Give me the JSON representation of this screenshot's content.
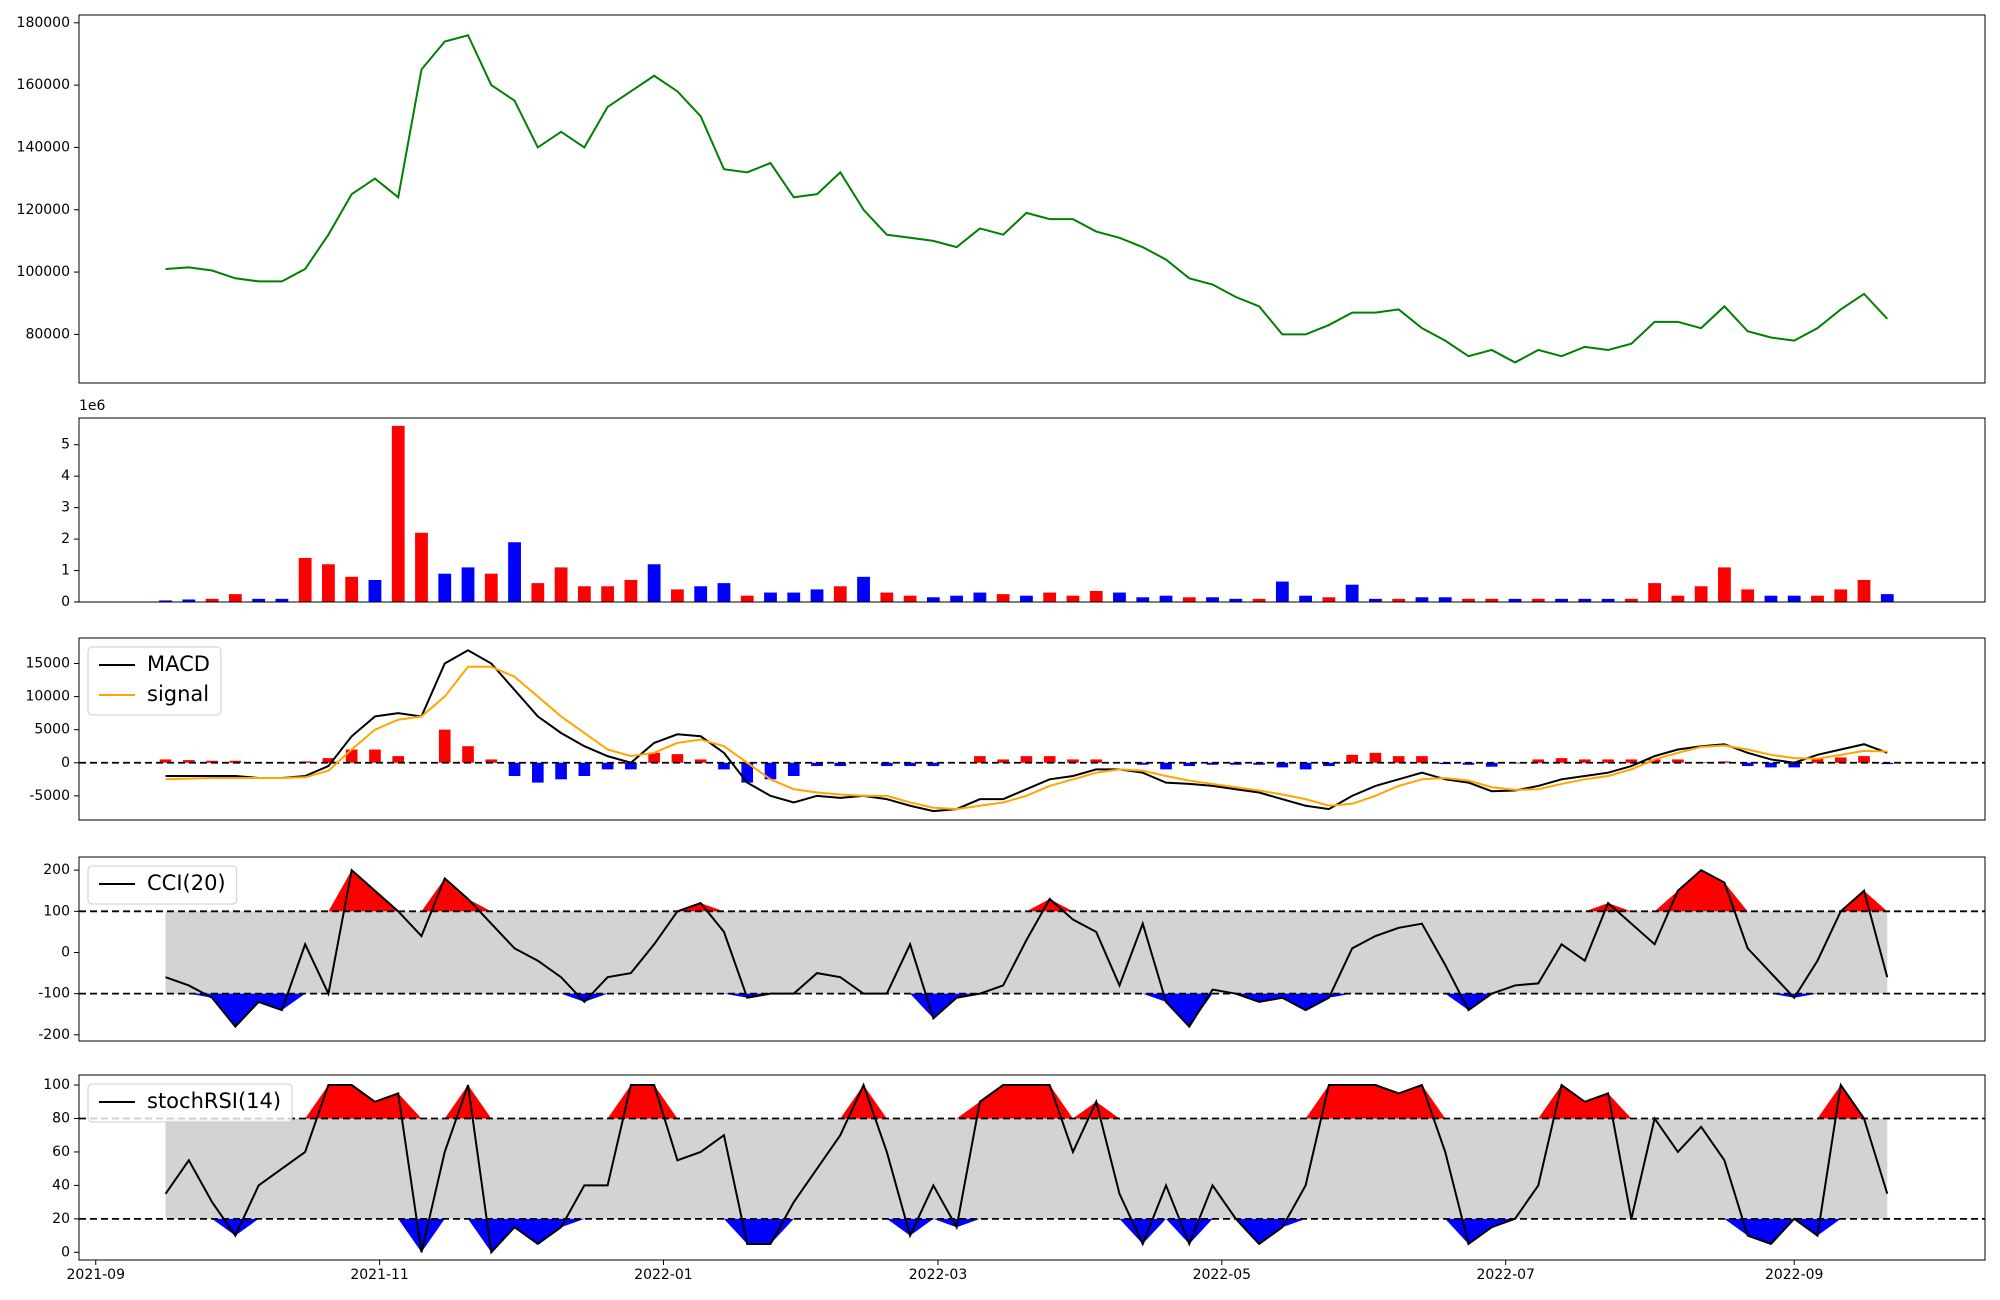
{
  "chart_data": [
    {
      "type": "line",
      "x": [
        15,
        20,
        25,
        30,
        35,
        40,
        45,
        50,
        55,
        60,
        65,
        70,
        75,
        80,
        85,
        90,
        95,
        100,
        105,
        110,
        115,
        120,
        125,
        130,
        135,
        140,
        145,
        150,
        155,
        160,
        165,
        170,
        175,
        180,
        185,
        190,
        195,
        200,
        205,
        210,
        215,
        220,
        225,
        230,
        235,
        240,
        245,
        250,
        255,
        260,
        265,
        270,
        275,
        280,
        285,
        290,
        295,
        300,
        305,
        310,
        315,
        320,
        325,
        330,
        335,
        340,
        345,
        350,
        355,
        360,
        365,
        370,
        375,
        380,
        385
      ],
      "values": [
        101000,
        101500,
        100500,
        98000,
        97000,
        97000,
        101000,
        112000,
        125000,
        130000,
        124000,
        165000,
        174000,
        176000,
        160000,
        155000,
        140000,
        145000,
        140000,
        153000,
        158000,
        163000,
        158000,
        150000,
        133000,
        132000,
        135000,
        124000,
        125000,
        132000,
        120000,
        112000,
        111000,
        110000,
        108000,
        114000,
        112000,
        119000,
        117000,
        117000,
        113000,
        111000,
        108000,
        104000,
        98000,
        96000,
        92000,
        89000,
        80000,
        80000,
        83000,
        87000,
        87000,
        88000,
        82000,
        78000,
        73000,
        75000,
        71000,
        75000,
        73000,
        76000,
        75000,
        77000,
        84000,
        84000,
        82000,
        89000,
        81000,
        79000,
        78000,
        82000,
        88000,
        93000,
        85000
      ],
      "color": "green",
      "xlim": [
        -3.6,
        406
      ],
      "ylim": [
        64400,
        182500
      ],
      "yticks": [
        80000,
        100000,
        120000,
        140000,
        160000,
        180000
      ]
    },
    {
      "type": "bar",
      "x": [
        15,
        20,
        25,
        30,
        35,
        40,
        45,
        50,
        55,
        60,
        65,
        70,
        75,
        80,
        85,
        90,
        95,
        100,
        105,
        110,
        115,
        120,
        125,
        130,
        135,
        140,
        145,
        150,
        155,
        160,
        165,
        170,
        175,
        180,
        185,
        190,
        195,
        200,
        205,
        210,
        215,
        220,
        225,
        230,
        235,
        240,
        245,
        250,
        255,
        260,
        265,
        270,
        275,
        280,
        285,
        290,
        295,
        300,
        305,
        310,
        315,
        320,
        325,
        330,
        335,
        340,
        345,
        350,
        355,
        360,
        365,
        370,
        375,
        380,
        385
      ],
      "values": [
        0.05,
        0.08,
        0.1,
        0.25,
        0.1,
        0.1,
        1.4,
        1.2,
        0.8,
        0.7,
        5.6,
        2.2,
        0.9,
        1.1,
        0.9,
        1.9,
        0.6,
        1.1,
        0.5,
        0.5,
        0.7,
        1.2,
        0.4,
        0.5,
        0.6,
        0.2,
        0.3,
        0.3,
        0.4,
        0.5,
        0.8,
        0.3,
        0.2,
        0.15,
        0.2,
        0.3,
        0.25,
        0.2,
        0.3,
        0.2,
        0.35,
        0.3,
        0.15,
        0.2,
        0.15,
        0.15,
        0.1,
        0.1,
        0.65,
        0.2,
        0.15,
        0.55,
        0.1,
        0.1,
        0.15,
        0.15,
        0.1,
        0.1,
        0.1,
        0.1,
        0.1,
        0.1,
        0.1,
        0.1,
        0.6,
        0.2,
        0.5,
        1.1,
        0.4,
        0.2,
        0.2,
        0.2,
        0.4,
        0.7,
        0.25
      ],
      "colors": [
        "blue",
        "blue",
        "red",
        "red",
        "blue",
        "blue",
        "red",
        "red",
        "red",
        "blue",
        "red",
        "red",
        "blue",
        "blue",
        "red",
        "blue",
        "red",
        "red",
        "red",
        "red",
        "red",
        "blue",
        "red",
        "blue",
        "blue",
        "red",
        "blue",
        "blue",
        "blue",
        "red",
        "blue",
        "red",
        "red",
        "blue",
        "blue",
        "blue",
        "red",
        "blue",
        "red",
        "red",
        "red",
        "blue",
        "blue",
        "blue",
        "red",
        "blue",
        "blue",
        "red",
        "blue",
        "blue",
        "red",
        "blue",
        "blue",
        "red",
        "blue",
        "blue",
        "red",
        "red",
        "blue",
        "red",
        "blue",
        "blue",
        "blue",
        "red",
        "red",
        "red",
        "red",
        "red",
        "red",
        "blue",
        "blue",
        "red",
        "red",
        "red",
        "blue"
      ],
      "offset_label": "1e6",
      "xlim": [
        -3.6,
        406
      ],
      "ylim": [
        0,
        5.85
      ],
      "yticks": [
        0,
        1,
        2,
        3,
        4,
        5
      ]
    },
    {
      "type": "macd",
      "x": [
        15,
        20,
        25,
        30,
        35,
        40,
        45,
        50,
        55,
        60,
        65,
        70,
        75,
        80,
        85,
        90,
        95,
        100,
        105,
        110,
        115,
        120,
        125,
        130,
        135,
        140,
        145,
        150,
        155,
        160,
        165,
        170,
        175,
        180,
        185,
        190,
        195,
        200,
        205,
        210,
        215,
        220,
        225,
        230,
        235,
        240,
        245,
        250,
        255,
        260,
        265,
        270,
        275,
        280,
        285,
        290,
        295,
        300,
        305,
        310,
        315,
        320,
        325,
        330,
        335,
        340,
        345,
        350,
        355,
        360,
        365,
        370,
        375,
        380,
        385
      ],
      "series": [
        {
          "name": "MACD",
          "color": "black",
          "values": [
            -2000,
            -2000,
            -2000,
            -2000,
            -2300,
            -2300,
            -2000,
            -500,
            4000,
            7000,
            7500,
            7000,
            15000,
            17000,
            15000,
            11000,
            7000,
            4500,
            2500,
            1000,
            0,
            3000,
            4300,
            4000,
            1500,
            -3000,
            -5000,
            -6000,
            -5000,
            -5300,
            -5000,
            -5500,
            -6500,
            -7300,
            -7000,
            -5500,
            -5500,
            -4000,
            -2500,
            -2000,
            -1000,
            -1000,
            -1500,
            -3000,
            -3200,
            -3500,
            -4000,
            -4500,
            -5500,
            -6500,
            -7000,
            -5000,
            -3500,
            -2500,
            -1500,
            -2500,
            -3000,
            -4300,
            -4200,
            -3500,
            -2500,
            -2000,
            -1500,
            -500,
            1000,
            2000,
            2500,
            2800,
            1500,
            500,
            0,
            1200,
            2000,
            2800,
            1500
          ]
        },
        {
          "name": "signal",
          "color": "orange",
          "values": [
            -2500,
            -2400,
            -2300,
            -2300,
            -2300,
            -2300,
            -2200,
            -1200,
            2000,
            5000,
            6500,
            7000,
            10000,
            14500,
            14500,
            13000,
            10000,
            7000,
            4500,
            2000,
            1000,
            1500,
            3000,
            3500,
            2500,
            0,
            -2500,
            -4000,
            -4500,
            -4800,
            -5000,
            -5000,
            -6000,
            -6800,
            -7000,
            -6500,
            -6000,
            -5000,
            -3500,
            -2500,
            -1500,
            -1000,
            -1200,
            -2000,
            -2700,
            -3200,
            -3700,
            -4200,
            -4800,
            -5500,
            -6500,
            -6200,
            -5000,
            -3500,
            -2500,
            -2300,
            -2700,
            -3700,
            -4100,
            -4000,
            -3200,
            -2500,
            -2000,
            -1000,
            500,
            1500,
            2400,
            2600,
            2000,
            1200,
            700,
            600,
            1200,
            1800,
            1700
          ]
        }
      ],
      "histogram": {
        "values": [
          500,
          400,
          300,
          300,
          0,
          0,
          200,
          700,
          2000,
          2000,
          1000,
          0,
          5000,
          2500,
          500,
          -2000,
          -3000,
          -2500,
          -2000,
          -1000,
          -1000,
          1500,
          1300,
          500,
          -1000,
          -3000,
          -2500,
          -2000,
          -500,
          -500,
          0,
          -500,
          -500,
          -500,
          0,
          1000,
          500,
          1000,
          1000,
          500,
          500,
          0,
          -300,
          -1000,
          -500,
          -300,
          -300,
          -300,
          -700,
          -1000,
          -500,
          1200,
          1500,
          1000,
          1000,
          -200,
          -300,
          -600,
          -100,
          500,
          700,
          500,
          500,
          500,
          500,
          500,
          100,
          200,
          -500,
          -700,
          -700,
          600,
          800,
          1000,
          -200
        ],
        "pos_color": "red",
        "neg_color": "blue"
      },
      "ref_line": 0,
      "xlim": [
        -3.6,
        406
      ],
      "ylim": [
        -8650,
        18850
      ],
      "yticks": [
        -5000,
        0,
        5000,
        10000,
        15000
      ]
    },
    {
      "type": "band",
      "x": [
        15,
        20,
        25,
        30,
        35,
        40,
        45,
        50,
        55,
        60,
        65,
        70,
        75,
        80,
        85,
        90,
        95,
        100,
        105,
        110,
        115,
        120,
        125,
        130,
        135,
        140,
        145,
        150,
        155,
        160,
        165,
        170,
        175,
        180,
        185,
        190,
        195,
        200,
        205,
        210,
        215,
        220,
        225,
        230,
        235,
        240,
        245,
        250,
        255,
        260,
        265,
        270,
        275,
        280,
        285,
        290,
        295,
        300,
        305,
        310,
        315,
        320,
        325,
        330,
        335,
        340,
        345,
        350,
        355,
        360,
        365,
        370,
        375,
        380,
        385
      ],
      "series": [
        {
          "name": "CCI(20)",
          "color": "black",
          "values": [
            -60,
            -80,
            -110,
            -180,
            -120,
            -140,
            20,
            -100,
            200,
            150,
            100,
            40,
            180,
            130,
            70,
            10,
            -20,
            -60,
            -120,
            -60,
            -50,
            20,
            100,
            120,
            50,
            -110,
            -100,
            -100,
            -50,
            -60,
            -100,
            -100,
            20,
            -160,
            -110,
            -100,
            -80,
            30,
            130,
            80,
            50,
            -80,
            70,
            -120,
            -180,
            -90,
            -100,
            -120,
            -110,
            -140,
            -110,
            10,
            40,
            60,
            70,
            -30,
            -140,
            -100,
            -80,
            -75,
            20,
            -20,
            120,
            70,
            20,
            150,
            200,
            170,
            10,
            -50,
            -110,
            -20,
            100,
            150,
            -60
          ]
        }
      ],
      "bands": [
        -100,
        100
      ],
      "fill_colors": {
        "inside": "lightgray",
        "above": "red",
        "below": "blue"
      },
      "xlim": [
        -3.6,
        406
      ],
      "ylim": [
        -215,
        232
      ],
      "yticks": [
        -200,
        -100,
        0,
        100,
        200
      ]
    },
    {
      "type": "band",
      "x": [
        15,
        20,
        25,
        30,
        35,
        40,
        45,
        50,
        55,
        60,
        65,
        70,
        75,
        80,
        85,
        90,
        95,
        100,
        105,
        110,
        115,
        120,
        125,
        130,
        135,
        140,
        145,
        150,
        155,
        160,
        165,
        170,
        175,
        180,
        185,
        190,
        195,
        200,
        205,
        210,
        215,
        220,
        225,
        230,
        235,
        240,
        245,
        250,
        255,
        260,
        265,
        270,
        275,
        280,
        285,
        290,
        295,
        300,
        305,
        310,
        315,
        320,
        325,
        330,
        335,
        340,
        345,
        350,
        355,
        360,
        365,
        370,
        375,
        380,
        385
      ],
      "series": [
        {
          "name": "stochRSI(14)",
          "color": "black",
          "values": [
            35,
            55,
            30,
            10,
            40,
            50,
            60,
            100,
            100,
            90,
            95,
            0,
            60,
            100,
            0,
            15,
            5,
            15,
            40,
            40,
            100,
            100,
            55,
            60,
            70,
            5,
            5,
            30,
            50,
            70,
            100,
            60,
            10,
            40,
            15,
            90,
            100,
            100,
            100,
            60,
            90,
            35,
            5,
            40,
            5,
            40,
            20,
            5,
            15,
            40,
            100,
            100,
            100,
            95,
            100,
            60,
            5,
            15,
            20,
            40,
            100,
            90,
            95,
            20,
            80,
            60,
            75,
            55,
            10,
            5,
            20,
            10,
            100,
            80,
            35
          ]
        }
      ],
      "bands": [
        20,
        80
      ],
      "fill_colors": {
        "inside": "lightgray",
        "above": "red",
        "below": "blue"
      },
      "xlim": [
        -3.6,
        406
      ],
      "ylim": [
        -4.6,
        106
      ],
      "yticks": [
        0,
        20,
        40,
        60,
        80,
        100
      ],
      "xticks": [
        {
          "value": 0,
          "label": "2021-09"
        },
        {
          "value": 61,
          "label": "2021-11"
        },
        {
          "value": 122,
          "label": "2022-01"
        },
        {
          "value": 181,
          "label": "2022-03"
        },
        {
          "value": 242,
          "label": "2022-05"
        },
        {
          "value": 303,
          "label": "2022-07"
        },
        {
          "value": 365,
          "label": "2022-09"
        }
      ]
    }
  ]
}
